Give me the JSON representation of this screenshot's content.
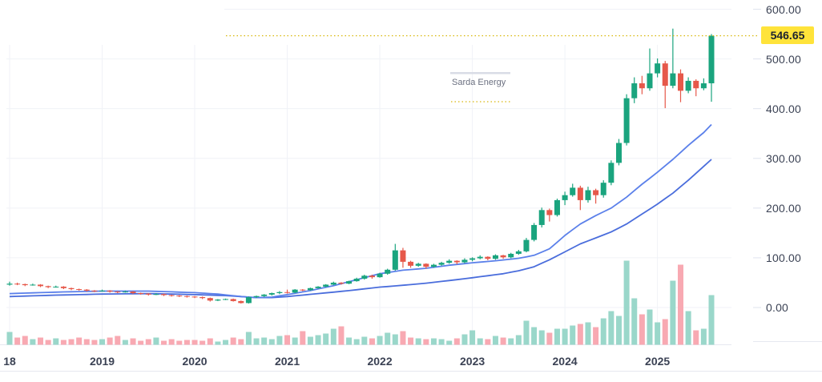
{
  "chart": {
    "symbol_label": "Sarda Energy",
    "last_price_label": "546.65"
  },
  "chart_data": {
    "type": "candlestick",
    "title": "Sarda Energy",
    "subtitle": "",
    "x_unit": "month",
    "x_range": [
      "2018-01",
      "2025-08"
    ],
    "legend_position": "none",
    "grid": true,
    "ylim": [
      0,
      620
    ],
    "last_price": 546.65,
    "price_axis": {
      "ticks": [
        {
          "v": 600,
          "label": "600.00"
        },
        {
          "v": 500,
          "label": "500.00"
        },
        {
          "v": 400,
          "label": "400.00"
        },
        {
          "v": 300,
          "label": "300.00"
        },
        {
          "v": 200,
          "label": "200.00"
        },
        {
          "v": 100,
          "label": "100.00"
        },
        {
          "v": 0,
          "label": "0.00"
        }
      ]
    },
    "time_axis": {
      "ticks": [
        {
          "label": "18",
          "i": 0
        },
        {
          "label": "2019",
          "i": 12
        },
        {
          "label": "2020",
          "i": 24
        },
        {
          "label": "2021",
          "i": 36
        },
        {
          "label": "2022",
          "i": 48
        },
        {
          "label": "2023",
          "i": 60
        },
        {
          "label": "2024",
          "i": 72
        },
        {
          "label": "2025",
          "i": 84
        }
      ]
    },
    "candles_format": [
      "open",
      "high",
      "low",
      "close",
      "volume_rel"
    ],
    "candles": [
      [
        46,
        52,
        44,
        48,
        16
      ],
      [
        48,
        50,
        45,
        47,
        9
      ],
      [
        47,
        48,
        43,
        45,
        11
      ],
      [
        45,
        48,
        44,
        46,
        7
      ],
      [
        46,
        47,
        41,
        43,
        9
      ],
      [
        43,
        44,
        39,
        41,
        6
      ],
      [
        41,
        44,
        40,
        42,
        8
      ],
      [
        42,
        43,
        37,
        39,
        6
      ],
      [
        39,
        40,
        35,
        37,
        7
      ],
      [
        37,
        38,
        34,
        36,
        9
      ],
      [
        36,
        37,
        32,
        34,
        7
      ],
      [
        34,
        35,
        31,
        33,
        6
      ],
      [
        33,
        36,
        32,
        34,
        7
      ],
      [
        34,
        35,
        30,
        32,
        9
      ],
      [
        32,
        33,
        29,
        31,
        11
      ],
      [
        31,
        34,
        30,
        32,
        6
      ],
      [
        32,
        33,
        27,
        29,
        8
      ],
      [
        29,
        30,
        26,
        28,
        5
      ],
      [
        28,
        29,
        24,
        26,
        7
      ],
      [
        26,
        29,
        25,
        27,
        9
      ],
      [
        27,
        28,
        23,
        25,
        5
      ],
      [
        25,
        26,
        22,
        24,
        7
      ],
      [
        24,
        25,
        21,
        23,
        5
      ],
      [
        23,
        24,
        20,
        22,
        6
      ],
      [
        22,
        23,
        19,
        21,
        6
      ],
      [
        21,
        22,
        17,
        19,
        5
      ],
      [
        19,
        20,
        12,
        14,
        8
      ],
      [
        14,
        17,
        13,
        16,
        4
      ],
      [
        16,
        18,
        15,
        17,
        6
      ],
      [
        17,
        18,
        12,
        13,
        9
      ],
      [
        13,
        14,
        8,
        9,
        7
      ],
      [
        9,
        22,
        8,
        21,
        16
      ],
      [
        21,
        24,
        19,
        23,
        8
      ],
      [
        23,
        27,
        21,
        26,
        9
      ],
      [
        26,
        30,
        24,
        29,
        7
      ],
      [
        29,
        33,
        27,
        31,
        11
      ],
      [
        31,
        36,
        28,
        30,
        12
      ],
      [
        30,
        37,
        29,
        36,
        9
      ],
      [
        36,
        37,
        33,
        35,
        17
      ],
      [
        35,
        40,
        34,
        39,
        10
      ],
      [
        39,
        43,
        38,
        42,
        12
      ],
      [
        42,
        47,
        41,
        46,
        14
      ],
      [
        46,
        52,
        45,
        50,
        20
      ],
      [
        50,
        51,
        46,
        48,
        23
      ],
      [
        48,
        54,
        47,
        53,
        9
      ],
      [
        53,
        60,
        52,
        58,
        7
      ],
      [
        58,
        66,
        56,
        64,
        10
      ],
      [
        64,
        66,
        58,
        61,
        8
      ],
      [
        61,
        70,
        60,
        68,
        11
      ],
      [
        68,
        78,
        66,
        76,
        15
      ],
      [
        76,
        128,
        74,
        115,
        13
      ],
      [
        115,
        120,
        80,
        92,
        17
      ],
      [
        92,
        94,
        80,
        84,
        9
      ],
      [
        84,
        90,
        82,
        88,
        8
      ],
      [
        88,
        89,
        78,
        82,
        7
      ],
      [
        82,
        88,
        80,
        86,
        8
      ],
      [
        86,
        92,
        84,
        90,
        7
      ],
      [
        90,
        97,
        88,
        94,
        5
      ],
      [
        94,
        95,
        87,
        91,
        8
      ],
      [
        91,
        99,
        89,
        96,
        13
      ],
      [
        96,
        101,
        93,
        99,
        18
      ],
      [
        99,
        105,
        97,
        102,
        8
      ],
      [
        102,
        103,
        95,
        98,
        7
      ],
      [
        98,
        107,
        96,
        105,
        11
      ],
      [
        105,
        106,
        98,
        101,
        9
      ],
      [
        101,
        110,
        99,
        108,
        8
      ],
      [
        108,
        116,
        106,
        113,
        12
      ],
      [
        113,
        140,
        111,
        136,
        30
      ],
      [
        136,
        170,
        133,
        166,
        22
      ],
      [
        166,
        201,
        161,
        196,
        18
      ],
      [
        196,
        199,
        173,
        186,
        15
      ],
      [
        186,
        219,
        183,
        216,
        20
      ],
      [
        216,
        233,
        206,
        226,
        20
      ],
      [
        226,
        249,
        223,
        241,
        24
      ],
      [
        241,
        245,
        196,
        216,
        26
      ],
      [
        216,
        243,
        211,
        236,
        28
      ],
      [
        236,
        239,
        209,
        226,
        22
      ],
      [
        226,
        256,
        221,
        251,
        33
      ],
      [
        251,
        296,
        246,
        291,
        42
      ],
      [
        291,
        339,
        286,
        331,
        36
      ],
      [
        331,
        429,
        326,
        421,
        105
      ],
      [
        421,
        463,
        411,
        451,
        58
      ],
      [
        451,
        466,
        429,
        441,
        38
      ],
      [
        441,
        521,
        436,
        471,
        44
      ],
      [
        471,
        501,
        463,
        491,
        28
      ],
      [
        491,
        496,
        401,
        446,
        32
      ],
      [
        446,
        561,
        441,
        471,
        80
      ],
      [
        471,
        479,
        413,
        436,
        100
      ],
      [
        436,
        463,
        431,
        456,
        42
      ],
      [
        456,
        459,
        425,
        441,
        18
      ],
      [
        441,
        461,
        437,
        451,
        20
      ],
      [
        451,
        550,
        414,
        546.65,
        62
      ]
    ],
    "series": [
      {
        "name": "ma-fast",
        "style": "line",
        "anchors": [
          [
            0,
            28
          ],
          [
            6,
            31
          ],
          [
            12,
            33
          ],
          [
            18,
            33
          ],
          [
            24,
            30
          ],
          [
            27,
            27
          ],
          [
            30,
            22
          ],
          [
            32,
            20
          ],
          [
            34,
            21
          ],
          [
            36,
            26
          ],
          [
            39,
            34
          ],
          [
            42,
            44
          ],
          [
            45,
            56
          ],
          [
            48,
            68
          ],
          [
            51,
            75
          ],
          [
            54,
            79
          ],
          [
            57,
            85
          ],
          [
            60,
            90
          ],
          [
            63,
            94
          ],
          [
            66,
            99
          ],
          [
            68,
            105
          ],
          [
            70,
            118
          ],
          [
            72,
            145
          ],
          [
            74,
            168
          ],
          [
            76,
            185
          ],
          [
            78,
            200
          ],
          [
            80,
            222
          ],
          [
            82,
            248
          ],
          [
            84,
            272
          ],
          [
            86,
            298
          ],
          [
            88,
            326
          ],
          [
            90,
            352
          ],
          [
            91,
            368
          ]
        ]
      },
      {
        "name": "ma-slow",
        "style": "line",
        "anchors": [
          [
            0,
            22
          ],
          [
            6,
            25
          ],
          [
            12,
            27
          ],
          [
            18,
            28
          ],
          [
            24,
            26
          ],
          [
            28,
            24
          ],
          [
            30,
            22
          ],
          [
            32,
            20
          ],
          [
            34,
            20
          ],
          [
            36,
            22
          ],
          [
            40,
            28
          ],
          [
            44,
            34
          ],
          [
            48,
            41
          ],
          [
            52,
            46
          ],
          [
            54,
            49
          ],
          [
            58,
            56
          ],
          [
            60,
            60
          ],
          [
            64,
            68
          ],
          [
            66,
            74
          ],
          [
            68,
            82
          ],
          [
            70,
            96
          ],
          [
            72,
            112
          ],
          [
            74,
            128
          ],
          [
            76,
            140
          ],
          [
            78,
            152
          ],
          [
            80,
            168
          ],
          [
            82,
            188
          ],
          [
            84,
            208
          ],
          [
            86,
            230
          ],
          [
            88,
            256
          ],
          [
            90,
            284
          ],
          [
            91,
            298
          ]
        ]
      }
    ],
    "colors": {
      "up": "#1aa47e",
      "down": "#e6584a",
      "vol_up": "#9ad7ca",
      "vol_down": "#f8a9b2",
      "ma_fast": "#5b80ea",
      "ma_slow": "#4a6ddc",
      "grid": "#f0f2f7",
      "last_price_line": "#d9b80e",
      "badge_bg": "#ffe33a",
      "badge_text": "#1c2230",
      "axis_text": "#3b4254",
      "annotation_text": "#6b7080",
      "annotation_bar": "#d9dce6",
      "separator": "#e6e8f0",
      "tick_dash": "#dfe3ee"
    }
  }
}
